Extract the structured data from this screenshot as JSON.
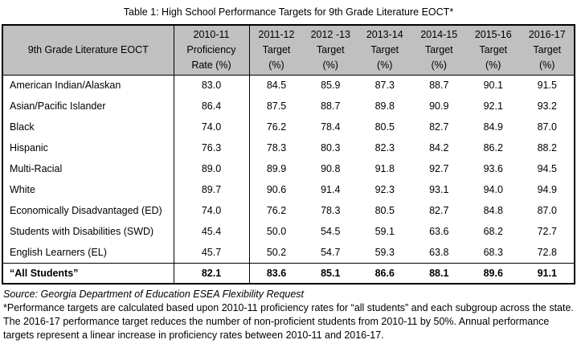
{
  "title": "Table 1: High School Performance Targets for 9th Grade Literature EOCT*",
  "table": {
    "headers": [
      "9th Grade Literature EOCT",
      "2010-11\nProficiency\nRate (%)",
      "2011-12\nTarget\n(%)",
      "2012 -13\nTarget\n(%)",
      "2013-14\nTarget\n(%)",
      "2014-15\nTarget\n(%)",
      "2015-16\nTarget\n(%)",
      "2016-17\nTarget\n(%)"
    ],
    "rows": [
      {
        "label": "American Indian/Alaskan",
        "values": [
          "83.0",
          "84.5",
          "85.9",
          "87.3",
          "88.7",
          "90.1",
          "91.5"
        ]
      },
      {
        "label": "Asian/Pacific Islander",
        "values": [
          "86.4",
          "87.5",
          "88.7",
          "89.8",
          "90.9",
          "92.1",
          "93.2"
        ]
      },
      {
        "label": "Black",
        "values": [
          "74.0",
          "76.2",
          "78.4",
          "80.5",
          "82.7",
          "84.9",
          "87.0"
        ]
      },
      {
        "label": "Hispanic",
        "values": [
          "76.3",
          "78.3",
          "80.3",
          "82.3",
          "84.2",
          "86.2",
          "88.2"
        ]
      },
      {
        "label": "Multi-Racial",
        "values": [
          "89.0",
          "89.9",
          "90.8",
          "91.8",
          "92.7",
          "93.6",
          "94.5"
        ]
      },
      {
        "label": "White",
        "values": [
          "89.7",
          "90.6",
          "91.4",
          "92.3",
          "93.1",
          "94.0",
          "94.9"
        ]
      },
      {
        "label": "Economically Disadvantaged (ED)",
        "values": [
          "74.0",
          "76.2",
          "78.3",
          "80.5",
          "82.7",
          "84.8",
          "87.0"
        ]
      },
      {
        "label": "Students with Disabilities (SWD)",
        "values": [
          "45.4",
          "50.0",
          "54.5",
          "59.1",
          "63.6",
          "68.2",
          "72.7"
        ]
      },
      {
        "label": "English Learners (EL)",
        "values": [
          "45.7",
          "50.2",
          "54.7",
          "59.3",
          "63.8",
          "68.3",
          "72.8"
        ]
      }
    ],
    "total_row": {
      "label": "“All Students”",
      "values": [
        "82.1",
        "83.6",
        "85.1",
        "86.6",
        "88.1",
        "89.6",
        "91.1"
      ]
    }
  },
  "footer": {
    "source": "Source: Georgia Department of Education ESEA Flexibility Request",
    "footnote": "*Performance targets are calculated based upon 2010-11 proficiency rates for “all students” and each subgroup across the state. The 2016-17 performance target reduces the number of non-proficient students from 2010-11 by 50%. Annual performance targets represent a linear increase in proficiency rates between 2010-11 and 2016-17."
  },
  "colors": {
    "header_bg": "#c0c0c0",
    "border": "#000000"
  }
}
